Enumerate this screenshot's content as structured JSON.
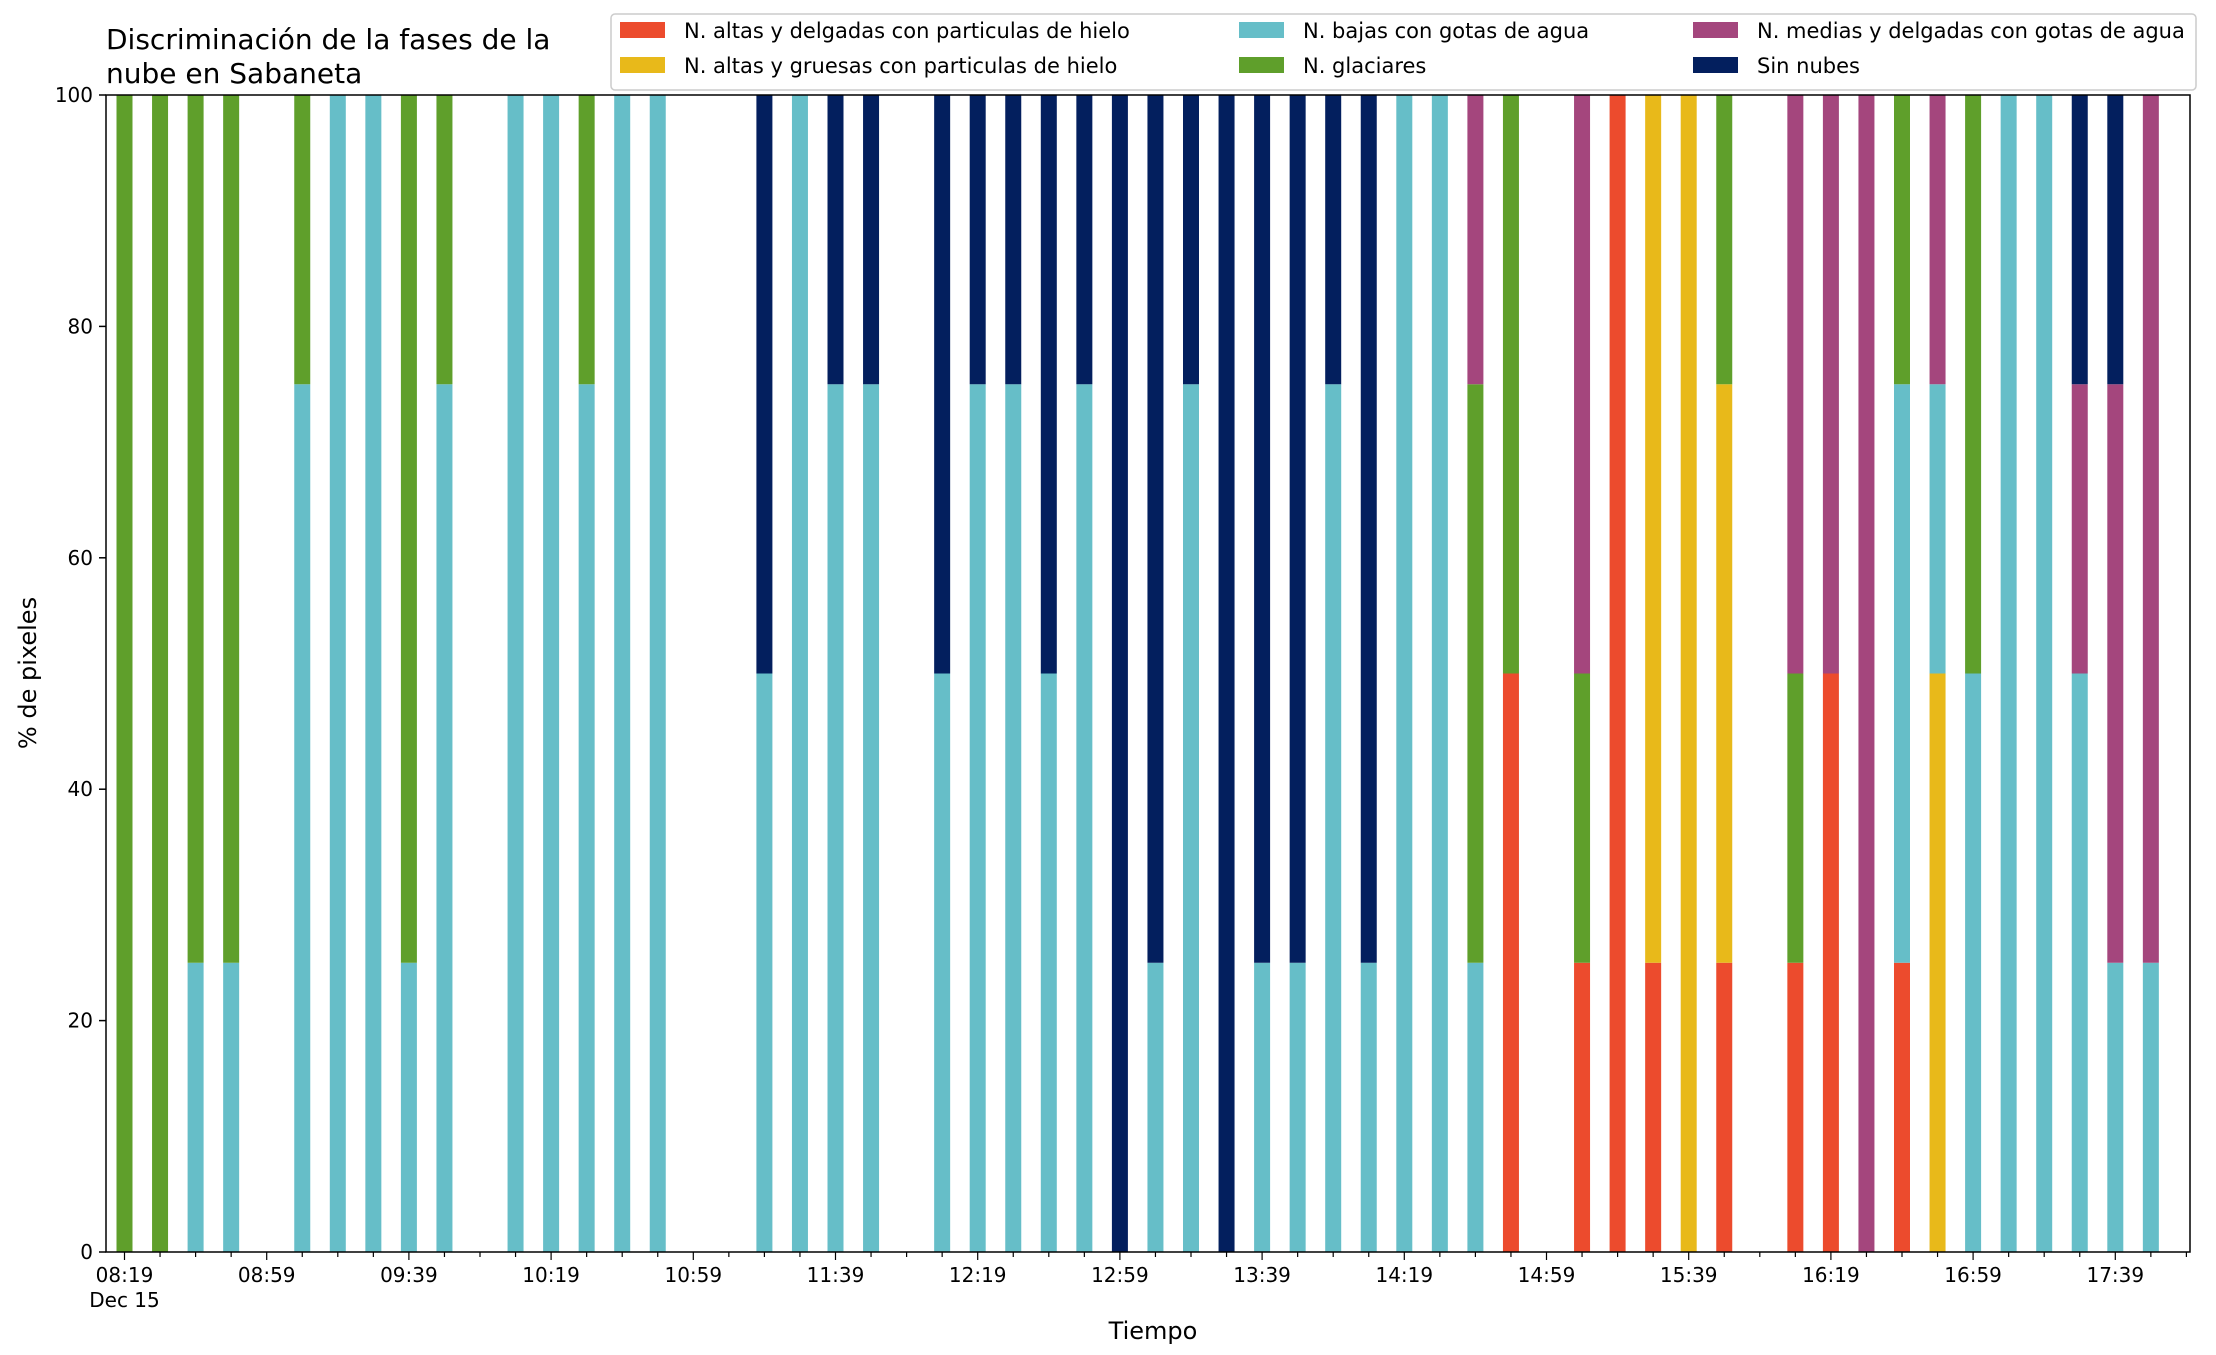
{
  "chart_data": {
    "type": "bar",
    "stacked": true,
    "title": "Discriminación de la fases de la nube en Sabaneta",
    "title_lines": [
      "Discriminación de la fases de la",
      "nube en Sabaneta"
    ],
    "xlabel": "Tiempo",
    "ylabel": "% de pixeles",
    "ylim": [
      0,
      100
    ],
    "yticks": [
      0,
      20,
      40,
      60,
      80,
      100
    ],
    "xtick_labels": [
      "08:19",
      "08:59",
      "09:39",
      "10:19",
      "10:59",
      "11:39",
      "12:19",
      "12:59",
      "13:39",
      "14:19",
      "14:59",
      "15:39",
      "16:19",
      "16:59",
      "17:39"
    ],
    "x_date_label": "Dec 15",
    "slot_minutes": 10,
    "slots_per_major_tick": 4,
    "grid": false,
    "legend_position": "top-right",
    "colors": {
      "ice_thin": "#ec4b2d",
      "ice_thick": "#e8b91a",
      "low_water": "#66bec8",
      "glacial": "#5f9f2b",
      "mid_water": "#a4467d",
      "clear": "#031f5e"
    },
    "series": [
      {
        "key": "ice_thin",
        "name": "N. altas y delgadas con particulas de hielo"
      },
      {
        "key": "ice_thick",
        "name": "N. altas y gruesas con particulas de hielo"
      },
      {
        "key": "low_water",
        "name": "N. bajas con gotas de agua"
      },
      {
        "key": "glacial",
        "name": "N. glaciares"
      },
      {
        "key": "mid_water",
        "name": "N. medias y delgadas con gotas de agua"
      },
      {
        "key": "clear",
        "name": "Sin nubes"
      }
    ],
    "stack_order": [
      "ice_thin",
      "ice_thick",
      "low_water",
      "glacial",
      "mid_water",
      "clear"
    ],
    "bars": [
      {
        "time": "08:19",
        "glacial": 100
      },
      {
        "time": "08:29",
        "glacial": 100
      },
      {
        "time": "08:39",
        "low_water": 25,
        "glacial": 75
      },
      {
        "time": "08:49",
        "low_water": 25,
        "glacial": 75
      },
      {
        "time": "09:09",
        "low_water": 75,
        "glacial": 25
      },
      {
        "time": "09:19",
        "low_water": 100
      },
      {
        "time": "09:29",
        "low_water": 100
      },
      {
        "time": "09:39",
        "low_water": 25,
        "glacial": 75
      },
      {
        "time": "09:49",
        "low_water": 75,
        "glacial": 25
      },
      {
        "time": "10:09",
        "low_water": 100
      },
      {
        "time": "10:19",
        "low_water": 100
      },
      {
        "time": "10:29",
        "low_water": 75,
        "glacial": 25
      },
      {
        "time": "10:39",
        "low_water": 100
      },
      {
        "time": "10:49",
        "low_water": 100
      },
      {
        "time": "11:19",
        "low_water": 50,
        "clear": 50
      },
      {
        "time": "11:29",
        "low_water": 100
      },
      {
        "time": "11:39",
        "low_water": 75,
        "clear": 25
      },
      {
        "time": "11:49",
        "low_water": 75,
        "clear": 25
      },
      {
        "time": "12:09",
        "low_water": 50,
        "clear": 50
      },
      {
        "time": "12:19",
        "low_water": 75,
        "clear": 25
      },
      {
        "time": "12:29",
        "low_water": 75,
        "clear": 25
      },
      {
        "time": "12:39",
        "low_water": 50,
        "clear": 50
      },
      {
        "time": "12:49",
        "low_water": 75,
        "clear": 25
      },
      {
        "time": "12:59",
        "clear": 100
      },
      {
        "time": "13:09",
        "low_water": 25,
        "clear": 75
      },
      {
        "time": "13:19",
        "low_water": 75,
        "clear": 25
      },
      {
        "time": "13:29",
        "clear": 100
      },
      {
        "time": "13:39",
        "low_water": 25,
        "clear": 75
      },
      {
        "time": "13:49",
        "low_water": 25,
        "clear": 75
      },
      {
        "time": "13:59",
        "low_water": 75,
        "clear": 25
      },
      {
        "time": "14:09",
        "low_water": 25,
        "clear": 75
      },
      {
        "time": "14:19",
        "low_water": 100
      },
      {
        "time": "14:29",
        "low_water": 100
      },
      {
        "time": "14:39",
        "low_water": 25,
        "glacial": 50,
        "mid_water": 25
      },
      {
        "time": "14:49",
        "ice_thin": 50,
        "glacial": 50
      },
      {
        "time": "15:09",
        "ice_thin": 25,
        "glacial": 25,
        "mid_water": 50
      },
      {
        "time": "15:19",
        "ice_thin": 100
      },
      {
        "time": "15:29",
        "ice_thin": 25,
        "ice_thick": 75
      },
      {
        "time": "15:39",
        "ice_thick": 100
      },
      {
        "time": "15:49",
        "ice_thin": 25,
        "ice_thick": 50,
        "glacial": 25
      },
      {
        "time": "16:09",
        "ice_thin": 25,
        "glacial": 25,
        "mid_water": 50
      },
      {
        "time": "16:19",
        "ice_thin": 50,
        "mid_water": 50
      },
      {
        "time": "16:29",
        "mid_water": 100
      },
      {
        "time": "16:39",
        "ice_thin": 25,
        "low_water": 50,
        "glacial": 25
      },
      {
        "time": "16:49",
        "ice_thick": 50,
        "low_water": 25,
        "mid_water": 25
      },
      {
        "time": "16:59",
        "low_water": 50,
        "glacial": 50
      },
      {
        "time": "17:09",
        "low_water": 100
      },
      {
        "time": "17:19",
        "low_water": 100
      },
      {
        "time": "17:29",
        "low_water": 50,
        "mid_water": 25,
        "clear": 25
      },
      {
        "time": "17:39",
        "low_water": 25,
        "mid_water": 50,
        "clear": 25
      },
      {
        "time": "17:49",
        "low_water": 25,
        "mid_water": 75
      }
    ]
  }
}
